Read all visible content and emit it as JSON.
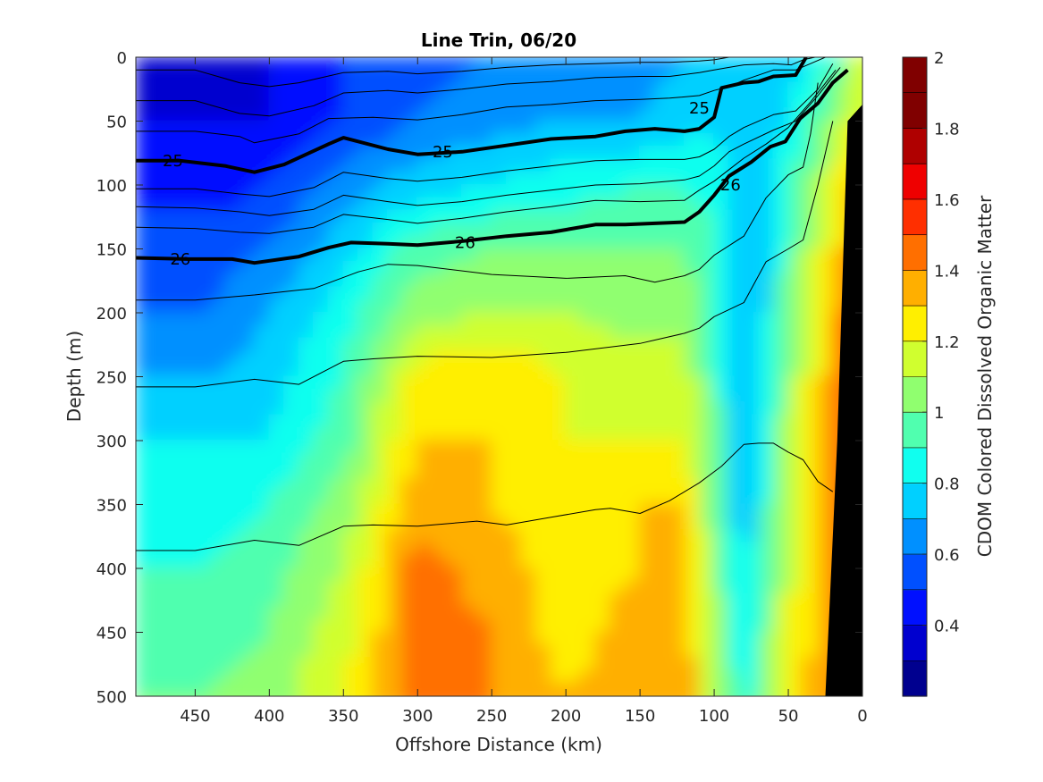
{
  "chart_data": {
    "type": "heatmap",
    "title": "Line Trin, 06/20",
    "xlabel": "Offshore Distance (km)",
    "ylabel": "Depth (m)",
    "colorbar_label": "CDOM Colored Dissolved Organic Matter",
    "xlim": [
      490,
      0
    ],
    "ylim": [
      0,
      500
    ],
    "x_ticks": [
      450,
      400,
      350,
      300,
      250,
      200,
      150,
      100,
      50,
      0
    ],
    "y_ticks": [
      0,
      50,
      100,
      150,
      200,
      250,
      300,
      350,
      400,
      450,
      500
    ],
    "colorbar_range": [
      0.2,
      2.0
    ],
    "colorbar_ticks": [
      0.4,
      0.6,
      0.8,
      1,
      1.2,
      1.4,
      1.6,
      1.8,
      2
    ],
    "colorbar_levels": [
      0.2,
      0.3,
      0.4,
      0.5,
      0.6,
      0.7,
      0.8,
      0.9,
      1.0,
      1.1,
      1.2,
      1.3,
      1.4,
      1.5,
      1.6,
      1.7,
      1.8,
      1.9,
      2.0
    ],
    "colormap": [
      "#00008f",
      "#0000cf",
      "#0010ff",
      "#0050ff",
      "#0090ff",
      "#00d0ff",
      "#10ffef",
      "#50ffaf",
      "#90ff6f",
      "#d0ff2f",
      "#ffef00",
      "#ffaf00",
      "#ff6f00",
      "#ff2f00",
      "#ef0000",
      "#af0000",
      "#800000",
      "#800000"
    ],
    "field": {
      "x": [
        490,
        440,
        400,
        350,
        300,
        250,
        200,
        150,
        120,
        100,
        80,
        65,
        50,
        30,
        15,
        5
      ],
      "depth": [
        0,
        50,
        100,
        150,
        200,
        250,
        300,
        350,
        400,
        450,
        500
      ],
      "values": [
        [
          0.35,
          0.35,
          0.4,
          0.5,
          0.55,
          0.6,
          0.6,
          0.65,
          0.7,
          0.7,
          0.7,
          0.7,
          0.75,
          0.85,
          0.95,
          1.1
        ],
        [
          0.4,
          0.4,
          0.4,
          0.5,
          0.6,
          0.65,
          0.7,
          0.7,
          0.75,
          0.8,
          0.75,
          0.75,
          0.8,
          0.95,
          1.1,
          1.2
        ],
        [
          0.45,
          0.45,
          0.5,
          0.65,
          0.75,
          0.8,
          0.85,
          0.9,
          0.9,
          0.85,
          0.7,
          0.75,
          0.9,
          1.05,
          1.25,
          1.3
        ],
        [
          0.55,
          0.55,
          0.6,
          0.75,
          0.95,
          1.0,
          1.0,
          1.0,
          1.0,
          0.95,
          0.7,
          0.75,
          0.95,
          1.15,
          1.3,
          1.4
        ],
        [
          0.6,
          0.6,
          0.7,
          0.85,
          1.05,
          1.1,
          1.1,
          1.05,
          1.05,
          0.9,
          0.7,
          0.8,
          1.0,
          1.2,
          1.4,
          1.5
        ],
        [
          0.7,
          0.7,
          0.75,
          0.9,
          1.25,
          1.3,
          1.2,
          1.15,
          1.15,
          0.95,
          0.7,
          0.8,
          1.05,
          1.25,
          1.4,
          1.45
        ],
        [
          0.8,
          0.8,
          0.8,
          0.95,
          1.3,
          1.3,
          1.2,
          1.2,
          1.2,
          1.0,
          0.7,
          0.85,
          1.1,
          1.3,
          1.4,
          1.4
        ],
        [
          0.85,
          0.85,
          0.9,
          1.05,
          1.35,
          1.3,
          1.25,
          1.3,
          1.3,
          1.0,
          0.7,
          0.9,
          1.15,
          1.3,
          1.4,
          1.4
        ],
        [
          0.9,
          0.9,
          0.95,
          1.1,
          1.45,
          1.35,
          1.25,
          1.3,
          1.35,
          1.05,
          0.75,
          0.95,
          1.15,
          1.3,
          1.4,
          1.4
        ],
        [
          0.95,
          0.95,
          1.0,
          1.15,
          1.45,
          1.4,
          1.25,
          1.35,
          1.35,
          1.1,
          0.8,
          1.0,
          1.2,
          1.3,
          1.4,
          1.4
        ],
        [
          1.0,
          1.0,
          1.05,
          1.2,
          1.45,
          1.4,
          1.3,
          1.35,
          1.4,
          1.1,
          0.85,
          1.0,
          1.25,
          1.35,
          1.4,
          1.4
        ]
      ]
    },
    "isopycnals_bold": [
      {
        "value": 25,
        "x": [
          490,
          460,
          430,
          410,
          390,
          360,
          350,
          320,
          300,
          270,
          240,
          210,
          180,
          160,
          140,
          120,
          110,
          100,
          95,
          80,
          70,
          60,
          45,
          38
        ],
        "depth": [
          81,
          81,
          85,
          90,
          84,
          68,
          63,
          72,
          76,
          74,
          69,
          64,
          62,
          58,
          56,
          58,
          56,
          47,
          24,
          20,
          19,
          15,
          14,
          0
        ]
      },
      {
        "value": 26,
        "x": [
          490,
          455,
          425,
          410,
          380,
          360,
          345,
          320,
          300,
          270,
          240,
          210,
          180,
          160,
          140,
          120,
          110,
          100,
          90,
          75,
          62,
          52,
          42,
          30,
          20,
          10
        ],
        "depth": [
          157,
          158,
          158,
          161,
          156,
          149,
          145,
          146,
          147,
          144,
          140,
          137,
          131,
          131,
          130,
          129,
          121,
          108,
          93,
          82,
          70,
          66,
          48,
          36,
          20,
          10
        ]
      }
    ],
    "isopycnals_thin": [
      {
        "x": [
          490,
          450,
          420,
          400,
          380,
          350,
          320,
          300,
          270,
          240,
          210,
          180,
          150,
          130,
          110,
          100,
          90,
          80,
          60,
          48,
          40,
          38
        ],
        "depth": [
          10,
          10,
          20,
          23,
          20,
          12,
          11,
          13,
          11,
          8,
          6,
          5,
          4,
          4,
          3,
          2,
          0,
          0,
          0,
          0,
          0,
          0
        ]
      },
      {
        "x": [
          490,
          450,
          420,
          400,
          370,
          350,
          320,
          300,
          270,
          240,
          210,
          180,
          150,
          130,
          110,
          100,
          90,
          80,
          60,
          48,
          40,
          32
        ],
        "depth": [
          34,
          34,
          44,
          46,
          38,
          28,
          26,
          28,
          25,
          21,
          19,
          16,
          15,
          15,
          12,
          10,
          8,
          6,
          5,
          6,
          2,
          0
        ]
      },
      {
        "x": [
          490,
          450,
          420,
          410,
          380,
          360,
          330,
          300,
          270,
          240,
          210,
          180,
          150,
          130,
          110,
          100,
          90,
          80,
          60,
          45,
          35,
          25
        ],
        "depth": [
          58,
          58,
          62,
          67,
          60,
          48,
          47,
          49,
          45,
          39,
          37,
          34,
          33,
          32,
          30,
          26,
          23,
          18,
          10,
          10,
          5,
          0
        ]
      },
      {
        "x": [
          490,
          450,
          420,
          400,
          370,
          350,
          320,
          300,
          270,
          240,
          210,
          180,
          150,
          120,
          110,
          100,
          90,
          80,
          60,
          45,
          30,
          20
        ],
        "depth": [
          103,
          103,
          107,
          109,
          102,
          90,
          95,
          97,
          94,
          89,
          85,
          81,
          80,
          80,
          78,
          72,
          62,
          55,
          45,
          42,
          25,
          5
        ]
      },
      {
        "x": [
          490,
          450,
          420,
          400,
          370,
          350,
          320,
          300,
          270,
          240,
          210,
          180,
          150,
          120,
          110,
          100,
          90,
          80,
          60,
          45,
          30,
          15
        ],
        "depth": [
          117,
          118,
          121,
          124,
          119,
          108,
          113,
          116,
          113,
          108,
          104,
          100,
          99,
          96,
          93,
          85,
          74,
          68,
          57,
          50,
          30,
          8
        ]
      },
      {
        "x": [
          490,
          450,
          420,
          400,
          370,
          350,
          320,
          300,
          270,
          240,
          210,
          180,
          150,
          120,
          110,
          100,
          90,
          80,
          65,
          50,
          35,
          18
        ],
        "depth": [
          133,
          134,
          137,
          138,
          133,
          123,
          127,
          130,
          126,
          121,
          117,
          112,
          113,
          112,
          104,
          97,
          88,
          79,
          68,
          55,
          35,
          10
        ]
      },
      {
        "x": [
          490,
          450,
          410,
          370,
          340,
          320,
          300,
          250,
          200,
          160,
          140,
          120,
          110,
          100,
          80,
          65,
          50,
          40,
          35,
          30
        ],
        "depth": [
          190,
          190,
          186,
          181,
          168,
          162,
          163,
          170,
          173,
          171,
          176,
          171,
          166,
          155,
          140,
          110,
          92,
          86,
          60,
          20
        ]
      },
      {
        "x": [
          490,
          450,
          410,
          380,
          350,
          330,
          300,
          250,
          200,
          150,
          120,
          110,
          100,
          80,
          65,
          50,
          40,
          30,
          20
        ],
        "depth": [
          258,
          258,
          252,
          256,
          238,
          236,
          234,
          235,
          231,
          224,
          216,
          212,
          203,
          192,
          160,
          150,
          143,
          100,
          50
        ]
      },
      {
        "x": [
          490,
          450,
          410,
          380,
          350,
          330,
          300,
          260,
          240,
          210,
          180,
          170,
          150,
          130,
          110,
          95,
          80,
          70,
          60,
          50,
          40,
          30,
          20
        ],
        "depth": [
          386,
          386,
          378,
          382,
          367,
          366,
          367,
          363,
          366,
          360,
          354,
          353,
          357,
          347,
          333,
          320,
          303,
          302,
          302,
          309,
          315,
          332,
          340
        ]
      }
    ],
    "contour_labels": [
      {
        "text": "25",
        "x": 465,
        "depth": 81
      },
      {
        "text": "25",
        "x": 283,
        "depth": 74
      },
      {
        "text": "25",
        "x": 110,
        "depth": 40
      },
      {
        "text": "26",
        "x": 460,
        "depth": 158
      },
      {
        "text": "26",
        "x": 268,
        "depth": 145
      },
      {
        "text": "26",
        "x": 89,
        "depth": 100
      }
    ],
    "bathymetry": {
      "x": [
        0,
        0,
        25,
        17,
        10
      ],
      "depth": [
        37,
        500,
        500,
        300,
        50
      ]
    }
  }
}
